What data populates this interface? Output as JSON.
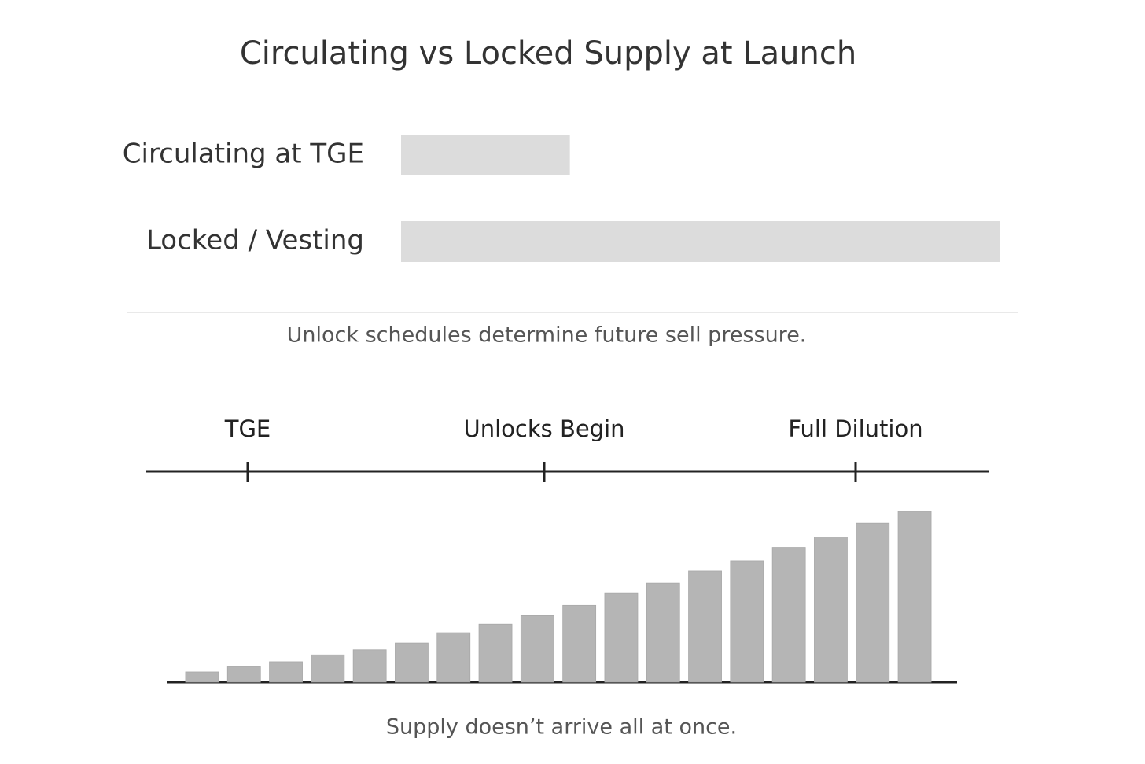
{
  "chart_data": [
    {
      "type": "hbar",
      "title": "Circulating vs Locked Supply at Launch",
      "categories": [
        "Circulating at TGE",
        "Locked / Vesting"
      ],
      "values": [
        22,
        78
      ],
      "color": "#dcdcdc",
      "xlim": [
        0,
        78
      ],
      "caption": "Unlock schedules determine future sell pressure."
    },
    {
      "type": "bar",
      "annotations": [
        "TGE",
        "Unlocks Begin",
        "Full Dilution"
      ],
      "values": [
        6,
        9,
        12,
        16,
        19,
        23,
        29,
        34,
        39,
        45,
        52,
        58,
        65,
        71,
        79,
        85,
        93,
        100
      ],
      "color": "#b5b5b5",
      "ylim": [
        0,
        100
      ],
      "caption": "Supply doesn’t arrive all at once."
    }
  ]
}
